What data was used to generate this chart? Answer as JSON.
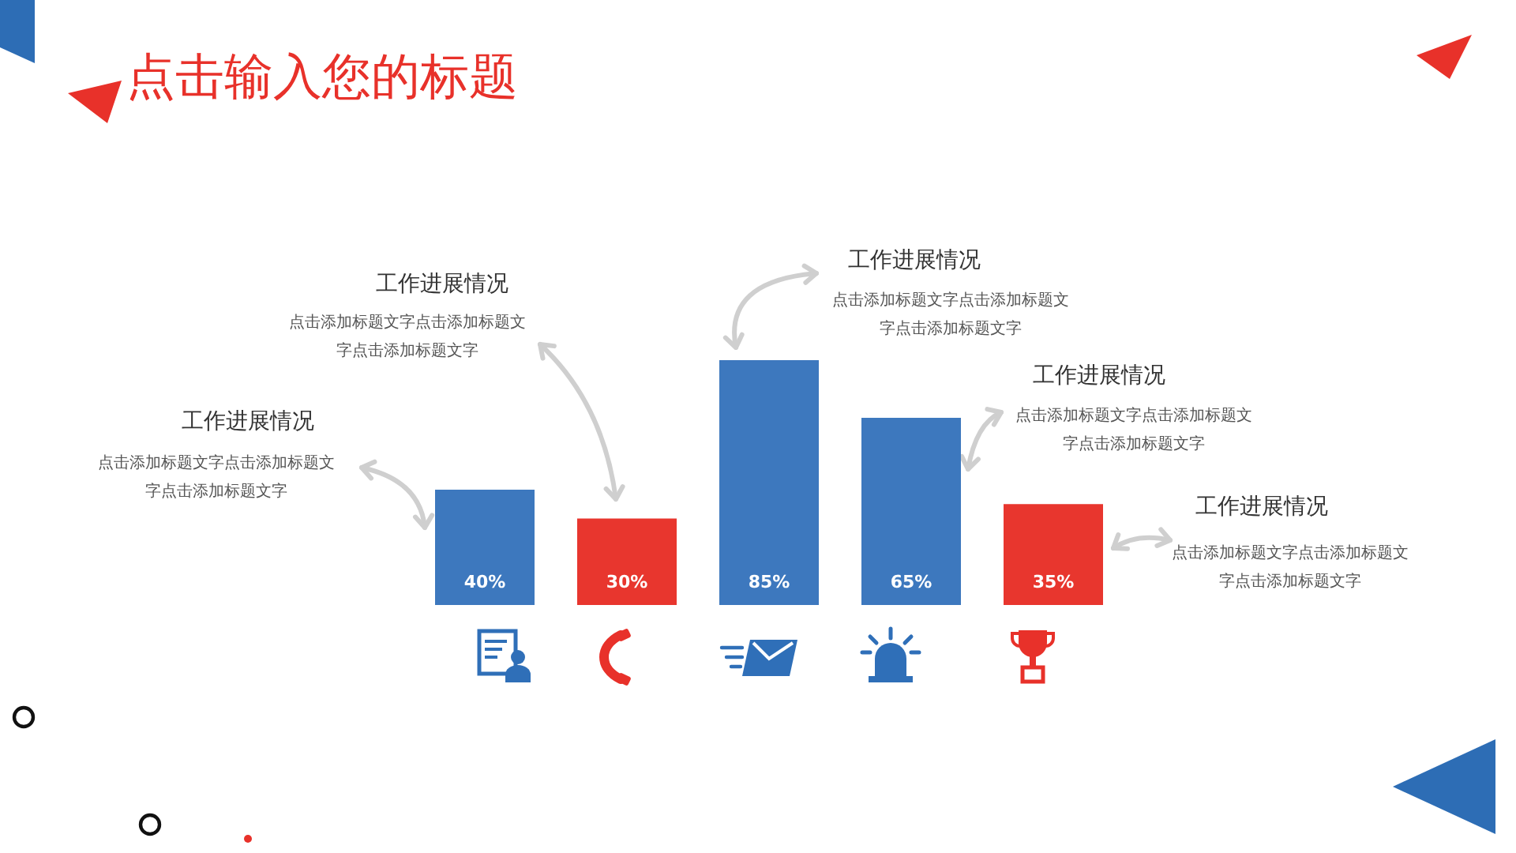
{
  "chart_data": {
    "type": "bar",
    "title": "点击输入您的标题",
    "categories": [
      null,
      null,
      null,
      null,
      null
    ],
    "values": [
      40,
      30,
      85,
      65,
      35
    ],
    "colors": [
      "#3d78be",
      "#e8362e",
      "#3d78be",
      "#3d78be",
      "#e8362e"
    ],
    "value_labels": [
      "40%",
      "30%",
      "85%",
      "65%",
      "35%"
    ],
    "annotations": [
      "工作进展情况",
      "点击添加标题文字点击添加标题文字点击添加标题文字",
      "工作进展情况",
      "点击添加标题文字点击添加标题文字点击添加标题文字",
      "工作进展情况",
      "点击添加标题文字点击添加标题文字点击添加标题文字",
      "工作进展情况",
      "点击添加标题文字点击添加标题文字点击添加标题文字",
      "工作进展情况",
      "点击添加标题文字点击添加标题文字点击添加标题文字"
    ]
  }
}
